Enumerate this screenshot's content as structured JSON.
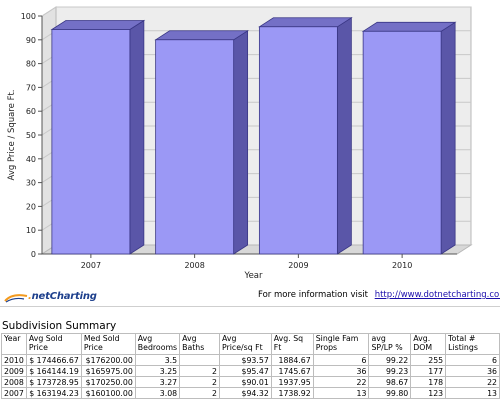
{
  "chart_data": {
    "type": "bar",
    "categories": [
      "2007",
      "2008",
      "2009",
      "2010"
    ],
    "values": [
      94.32,
      90.01,
      95.47,
      93.57
    ],
    "xlabel": "Year",
    "ylabel": "Avg Price / Square Ft.",
    "ylim": [
      0,
      100
    ],
    "yticks": [
      "0",
      "10",
      "20",
      "30",
      "40",
      "50",
      "60",
      "70",
      "80",
      "90",
      "100"
    ],
    "grid": true,
    "bar_color": "#9b98f5",
    "bar_side_color": "#5a56a8",
    "bar_top_color": "#7470c6",
    "wall_color": "#ededed",
    "floor_color": "#d8d8d8"
  },
  "footer": {
    "logo_prefix": ".",
    "logo_text": "netCharting",
    "more_info_text": "For more information visit",
    "more_info_link": "http://www.dotnetcharting.com"
  },
  "summary": {
    "title": "Subdivision Summary",
    "columns": [
      "Year",
      "Avg Sold Price",
      "Med Sold Price",
      "Avg Bedrooms",
      "Avg Baths",
      "Avg Price/sq Ft",
      "Avg. Sq Ft",
      "Single Fam Props",
      "avg SP/LP %",
      "Avg. DOM",
      "Total # Listings"
    ],
    "rows": [
      [
        "2010",
        "$ 174466.67",
        "$176200.00",
        "3.5",
        "",
        "$93.57",
        "1884.67",
        "6",
        "99.22",
        "255",
        "6"
      ],
      [
        "2009",
        "$ 164144.19",
        "$165975.00",
        "3.25",
        "2",
        "$95.47",
        "1745.67",
        "36",
        "99.23",
        "177",
        "36"
      ],
      [
        "2008",
        "$ 173728.95",
        "$170250.00",
        "3.27",
        "2",
        "$90.01",
        "1937.95",
        "22",
        "98.67",
        "178",
        "22"
      ],
      [
        "2007",
        "$ 163194.23",
        "$160100.00",
        "3.08",
        "2",
        "$94.32",
        "1738.92",
        "13",
        "99.80",
        "123",
        "13"
      ]
    ]
  }
}
